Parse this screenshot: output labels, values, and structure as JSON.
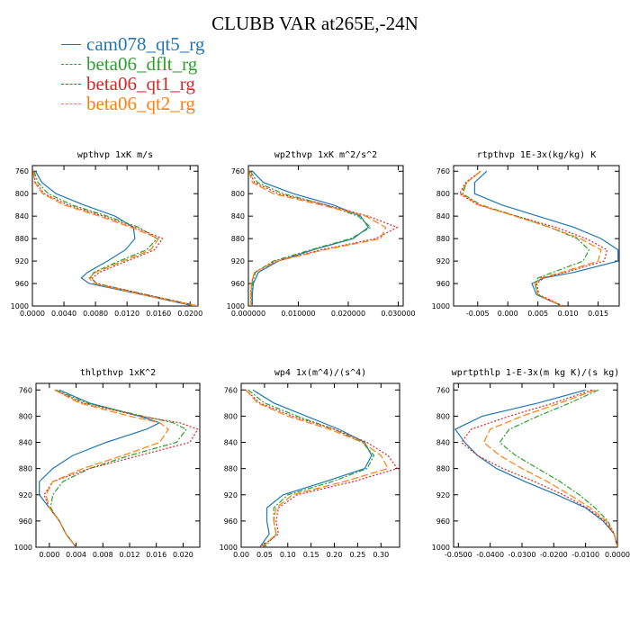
{
  "title": "CLUBB VAR at265E,-24N",
  "legend": [
    {
      "name": "cam078_qt5_rg",
      "color": "#1f77b4",
      "dash": ""
    },
    {
      "name": "beta06_dflt_rg",
      "color": "#2ca02c",
      "dash": "6,2,2,2"
    },
    {
      "name": "beta06_qt1_rg",
      "color": "#d62728",
      "dash": "2,2"
    },
    {
      "name": "beta06_qt2_rg",
      "color": "#ff7f0e",
      "dash": "8,3"
    }
  ],
  "chart_data": [
    {
      "type": "line",
      "title": "wpthvp  1xK m/s",
      "xlim": [
        0,
        0.021
      ],
      "ylim": [
        1000,
        750
      ],
      "xticks": [
        0,
        0.004,
        0.008,
        0.012,
        0.016,
        0.02
      ],
      "xtick_labels": [
        "0.0000",
        "0.0040",
        "0.0080",
        "0.0120",
        "0.0160",
        "0.0200"
      ],
      "yticks": [
        760,
        800,
        840,
        880,
        920,
        960,
        1000
      ],
      "ytick_labels": [
        "760",
        "800",
        "840",
        "880",
        "920",
        "960",
        "1000"
      ],
      "y": [
        760,
        780,
        800,
        820,
        840,
        860,
        880,
        900,
        920,
        940,
        950,
        960,
        980,
        1000
      ],
      "series": [
        {
          "name": "cam078_qt5_rg",
          "values": [
            0.0004,
            0.0012,
            0.003,
            0.0065,
            0.0105,
            0.0128,
            0.013,
            0.0118,
            0.0095,
            0.007,
            0.0062,
            0.0072,
            0.014,
            0.0205
          ]
        },
        {
          "name": "beta06_dflt_rg",
          "values": [
            0.0002,
            0.0007,
            0.002,
            0.005,
            0.0095,
            0.0135,
            0.0158,
            0.0145,
            0.011,
            0.0078,
            0.0074,
            0.0082,
            0.0145,
            0.021
          ]
        },
        {
          "name": "beta06_qt1_rg",
          "values": [
            0.0001,
            0.0004,
            0.0015,
            0.0045,
            0.009,
            0.013,
            0.0165,
            0.0155,
            0.012,
            0.0085,
            0.0076,
            0.008,
            0.0145,
            0.021
          ]
        },
        {
          "name": "beta06_qt2_rg",
          "values": [
            0.0001,
            0.0003,
            0.0013,
            0.004,
            0.0085,
            0.0125,
            0.016,
            0.015,
            0.0115,
            0.008,
            0.0072,
            0.0078,
            0.014,
            0.0208
          ]
        }
      ]
    },
    {
      "type": "line",
      "title": "wp2thvp  1xK m^2/s^2",
      "xlim": [
        0,
        0.031
      ],
      "ylim": [
        1000,
        750
      ],
      "xticks": [
        0,
        0.01,
        0.02,
        0.03
      ],
      "xtick_labels": [
        "0.000000",
        "0.010000",
        "0.020000",
        "0.030000"
      ],
      "yticks": [
        760,
        800,
        840,
        880,
        920,
        960,
        1000
      ],
      "ytick_labels": [
        "760",
        "800",
        "840",
        "880",
        "920",
        "960",
        "1000"
      ],
      "y": [
        760,
        780,
        800,
        820,
        840,
        860,
        880,
        900,
        920,
        940,
        960,
        980,
        1000
      ],
      "series": [
        {
          "name": "cam078_qt5_rg",
          "values": [
            0.0008,
            0.003,
            0.009,
            0.017,
            0.0225,
            0.024,
            0.021,
            0.013,
            0.006,
            0.002,
            0.001,
            0.0008,
            0.0008
          ]
        },
        {
          "name": "beta06_dflt_rg",
          "values": [
            0.0004,
            0.0018,
            0.007,
            0.0155,
            0.022,
            0.0245,
            0.0205,
            0.0125,
            0.005,
            0.0014,
            0.0008,
            0.0006,
            0.0006
          ]
        },
        {
          "name": "beta06_qt1_rg",
          "values": [
            0.0002,
            0.0012,
            0.006,
            0.0155,
            0.024,
            0.0298,
            0.0255,
            0.0145,
            0.0055,
            0.0012,
            0.0006,
            0.0005,
            0.0005
          ]
        },
        {
          "name": "beta06_qt2_rg",
          "values": [
            0.0001,
            0.0008,
            0.005,
            0.0145,
            0.0235,
            0.0275,
            0.0265,
            0.0152,
            0.0058,
            0.0012,
            0.0006,
            0.0005,
            0.0005
          ]
        }
      ]
    },
    {
      "type": "line",
      "title": "rtpthvp  1E-3x(kg/kg) K",
      "xlim": [
        -0.009,
        0.0185
      ],
      "ylim": [
        1000,
        750
      ],
      "xticks": [
        -0.005,
        0,
        0.005,
        0.01,
        0.015
      ],
      "xtick_labels": [
        "-0.005",
        "0.000",
        "0.005",
        "0.010",
        "0.015"
      ],
      "yticks": [
        760,
        800,
        840,
        880,
        920,
        960,
        1000
      ],
      "ytick_labels": [
        "760",
        "800",
        "840",
        "880",
        "920",
        "960",
        "1000"
      ],
      "y": [
        760,
        780,
        800,
        820,
        840,
        860,
        880,
        900,
        920,
        940,
        950,
        960,
        980,
        1000
      ],
      "series": [
        {
          "name": "cam078_qt5_rg",
          "values": [
            -0.0035,
            -0.0055,
            -0.0055,
            -0.001,
            0.005,
            0.011,
            0.0155,
            0.0183,
            0.0183,
            0.011,
            0.006,
            0.004,
            0.0048,
            0.009
          ]
        },
        {
          "name": "beta06_dflt_rg",
          "values": [
            -0.0045,
            -0.0068,
            -0.0075,
            -0.0045,
            0.0015,
            0.007,
            0.0115,
            0.0135,
            0.0125,
            0.0075,
            0.005,
            0.0045,
            0.005,
            0.009
          ]
        },
        {
          "name": "beta06_qt1_rg",
          "values": [
            -0.0045,
            -0.007,
            -0.008,
            -0.005,
            0.0015,
            0.008,
            0.013,
            0.0165,
            0.016,
            0.0095,
            0.006,
            0.0048,
            0.0052,
            0.0092
          ]
        },
        {
          "name": "beta06_qt2_rg",
          "values": [
            -0.0045,
            -0.0068,
            -0.0078,
            -0.0048,
            0.0012,
            0.007,
            0.012,
            0.0155,
            0.015,
            0.009,
            0.0055,
            0.0046,
            0.005,
            0.009
          ]
        }
      ]
    },
    {
      "type": "line",
      "title": "thlpthvp  1xK^2",
      "xlim": [
        -0.002,
        0.0225
      ],
      "ylim": [
        1000,
        750
      ],
      "xticks": [
        0,
        0.004,
        0.008,
        0.012,
        0.016,
        0.02
      ],
      "xtick_labels": [
        "0.000",
        "0.004",
        "0.008",
        "0.012",
        "0.016",
        "0.020"
      ],
      "yticks": [
        760,
        800,
        840,
        880,
        920,
        960,
        1000
      ],
      "ytick_labels": [
        "760",
        "800",
        "840",
        "880",
        "920",
        "960",
        "1000"
      ],
      "y": [
        760,
        780,
        800,
        810,
        820,
        840,
        860,
        880,
        900,
        920,
        940,
        960,
        980,
        1000
      ],
      "series": [
        {
          "name": "cam078_qt5_rg",
          "values": [
            0.0015,
            0.006,
            0.0135,
            0.0165,
            0.0145,
            0.0085,
            0.0035,
            0.0005,
            -0.0015,
            -0.0015,
            0.0,
            0.0015,
            0.0025,
            0.004
          ]
        },
        {
          "name": "beta06_dflt_rg",
          "values": [
            0.001,
            0.0055,
            0.014,
            0.0185,
            0.0205,
            0.019,
            0.012,
            0.006,
            0.002,
            0.0005,
            0.0002,
            0.0015,
            0.0025,
            0.004
          ]
        },
        {
          "name": "beta06_qt1_rg",
          "values": [
            0.0008,
            0.005,
            0.0135,
            0.0195,
            0.0222,
            0.021,
            0.0135,
            0.006,
            0.0005,
            -0.0008,
            0.0,
            0.0015,
            0.0025,
            0.004
          ]
        },
        {
          "name": "beta06_qt2_rg",
          "values": [
            0.0008,
            0.0045,
            0.012,
            0.0165,
            0.0178,
            0.0165,
            0.011,
            0.005,
            0.0005,
            -0.0005,
            0.0,
            0.0015,
            0.0025,
            0.004
          ]
        }
      ]
    },
    {
      "type": "line",
      "title": "wp4  1x(m^4)/(s^4)",
      "xlim": [
        0,
        0.34
      ],
      "ylim": [
        1000,
        750
      ],
      "xticks": [
        0,
        0.05,
        0.1,
        0.15,
        0.2,
        0.25,
        0.3
      ],
      "xtick_labels": [
        "0.00",
        "0.05",
        "0.10",
        "0.15",
        "0.20",
        "0.25",
        "0.30"
      ],
      "yticks": [
        760,
        800,
        840,
        880,
        920,
        960,
        1000
      ],
      "ytick_labels": [
        "760",
        "800",
        "840",
        "880",
        "920",
        "960",
        "1000"
      ],
      "y": [
        760,
        780,
        800,
        820,
        840,
        860,
        880,
        900,
        920,
        940,
        960,
        980,
        1000
      ],
      "series": [
        {
          "name": "cam078_qt5_rg",
          "values": [
            0.025,
            0.07,
            0.14,
            0.21,
            0.265,
            0.28,
            0.265,
            0.18,
            0.09,
            0.055,
            0.055,
            0.06,
            0.04
          ]
        },
        {
          "name": "beta06_dflt_rg",
          "values": [
            0.015,
            0.05,
            0.12,
            0.2,
            0.26,
            0.285,
            0.27,
            0.195,
            0.1,
            0.07,
            0.07,
            0.075,
            0.05
          ]
        },
        {
          "name": "beta06_qt1_rg",
          "values": [
            0.01,
            0.04,
            0.11,
            0.2,
            0.27,
            0.315,
            0.335,
            0.24,
            0.12,
            0.08,
            0.075,
            0.08,
            0.04
          ]
        },
        {
          "name": "beta06_qt2_rg",
          "values": [
            0.01,
            0.035,
            0.1,
            0.19,
            0.26,
            0.3,
            0.315,
            0.22,
            0.11,
            0.075,
            0.07,
            0.075,
            0.045
          ]
        }
      ]
    },
    {
      "type": "line",
      "title": "wprtpthlp  1-E-3x(m kg K)/(s kg)",
      "xlim": [
        -0.0515,
        0.0
      ],
      "ylim": [
        1000,
        750
      ],
      "xticks": [
        -0.05,
        -0.04,
        -0.03,
        -0.02,
        -0.01,
        0
      ],
      "xtick_labels": [
        "-0.0500",
        "-0.0400",
        "-0.0300",
        "-0.0200",
        "-0.0100",
        "0.0000"
      ],
      "yticks": [
        760,
        800,
        840,
        880,
        920,
        960,
        1000
      ],
      "ytick_labels": [
        "760",
        "800",
        "840",
        "880",
        "920",
        "960",
        "1000"
      ],
      "y": [
        760,
        780,
        800,
        820,
        840,
        860,
        880,
        900,
        920,
        940,
        960,
        980,
        1000
      ],
      "series": [
        {
          "name": "cam078_qt5_rg",
          "values": [
            -0.01,
            -0.025,
            -0.0425,
            -0.051,
            -0.048,
            -0.044,
            -0.038,
            -0.029,
            -0.019,
            -0.01,
            -0.0045,
            -0.001,
            0.0
          ]
        },
        {
          "name": "beta06_dflt_rg",
          "values": [
            -0.006,
            -0.015,
            -0.025,
            -0.034,
            -0.037,
            -0.032,
            -0.025,
            -0.018,
            -0.012,
            -0.007,
            -0.003,
            -0.001,
            0.0
          ]
        },
        {
          "name": "beta06_qt1_rg",
          "values": [
            -0.008,
            -0.02,
            -0.034,
            -0.046,
            -0.049,
            -0.044,
            -0.036,
            -0.026,
            -0.017,
            -0.0095,
            -0.004,
            -0.001,
            0.0
          ]
        },
        {
          "name": "beta06_qt2_rg",
          "values": [
            -0.007,
            -0.018,
            -0.03,
            -0.04,
            -0.042,
            -0.037,
            -0.03,
            -0.022,
            -0.015,
            -0.0085,
            -0.0035,
            -0.001,
            0.0
          ]
        }
      ]
    }
  ]
}
